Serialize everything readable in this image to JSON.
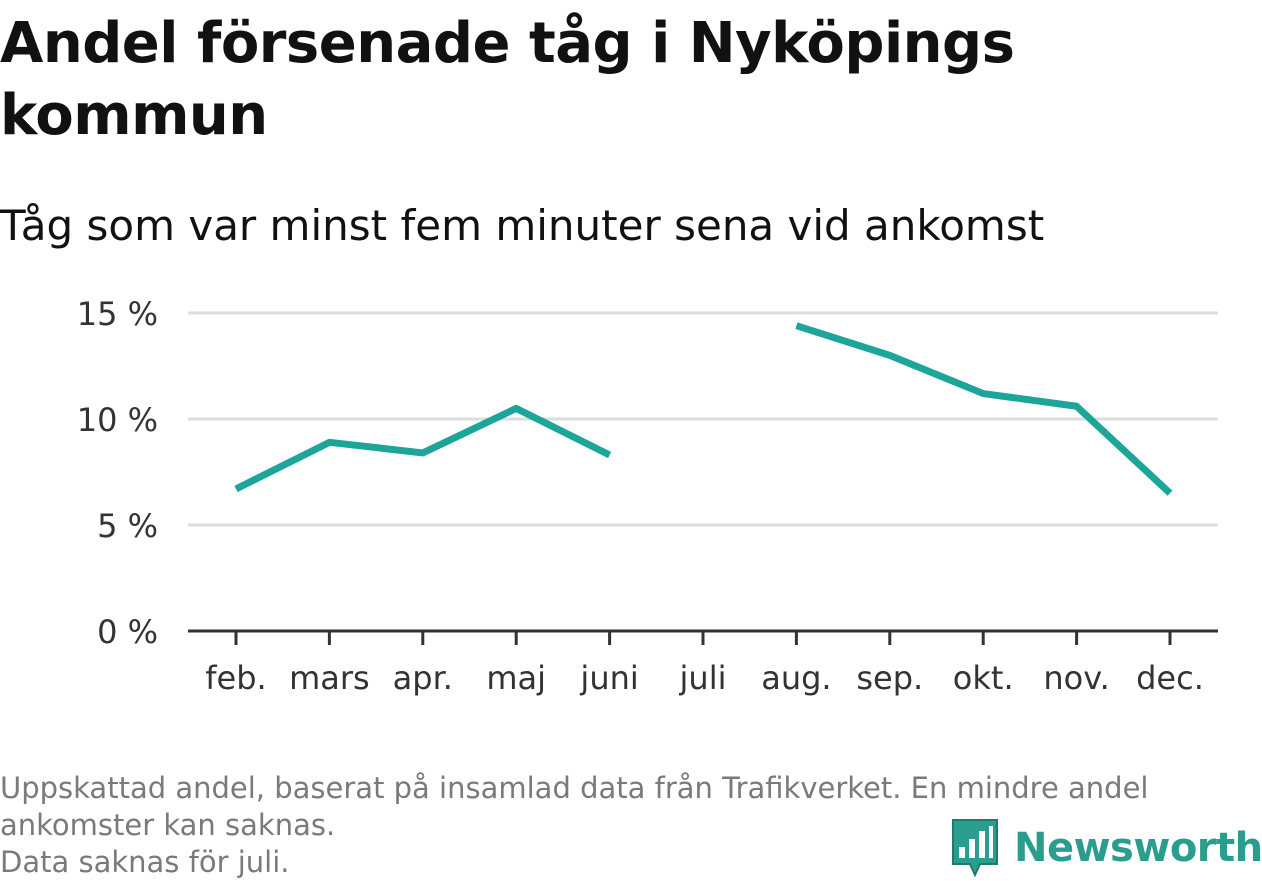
{
  "title": "Andel försenade tåg i Nyköpings kommun",
  "subtitle": "Tåg som var minst fem minuter sena vid ankomst",
  "footer": {
    "note_line1": "Uppskattad andel, baserat på insamlad data från Trafikverket. En mindre andel",
    "note_line2": "ankomster kan saknas.",
    "note_line3": "Data saknas för juli."
  },
  "brand": {
    "name": "Newsworthy",
    "icon": "bar-chart-speech-bubble-icon",
    "color": "#2a9d8f"
  },
  "chart_data": {
    "type": "line",
    "categories": [
      "feb.",
      "mars",
      "apr.",
      "maj",
      "juni",
      "juli",
      "aug.",
      "sep.",
      "okt.",
      "nov.",
      "dec."
    ],
    "series": [
      {
        "values": [
          6.7,
          8.9,
          8.4,
          10.5,
          8.3,
          null,
          14.4,
          13.0,
          11.2,
          10.6,
          6.5
        ],
        "color": "#1ea599"
      }
    ],
    "ylim": [
      0,
      15
    ],
    "yticks": [
      0,
      5,
      10,
      15
    ],
    "ytick_labels": [
      "0 %",
      "5 %",
      "10 %",
      "15 %"
    ],
    "grid": true,
    "legend": "none",
    "xlabel": "",
    "ylabel": ""
  }
}
